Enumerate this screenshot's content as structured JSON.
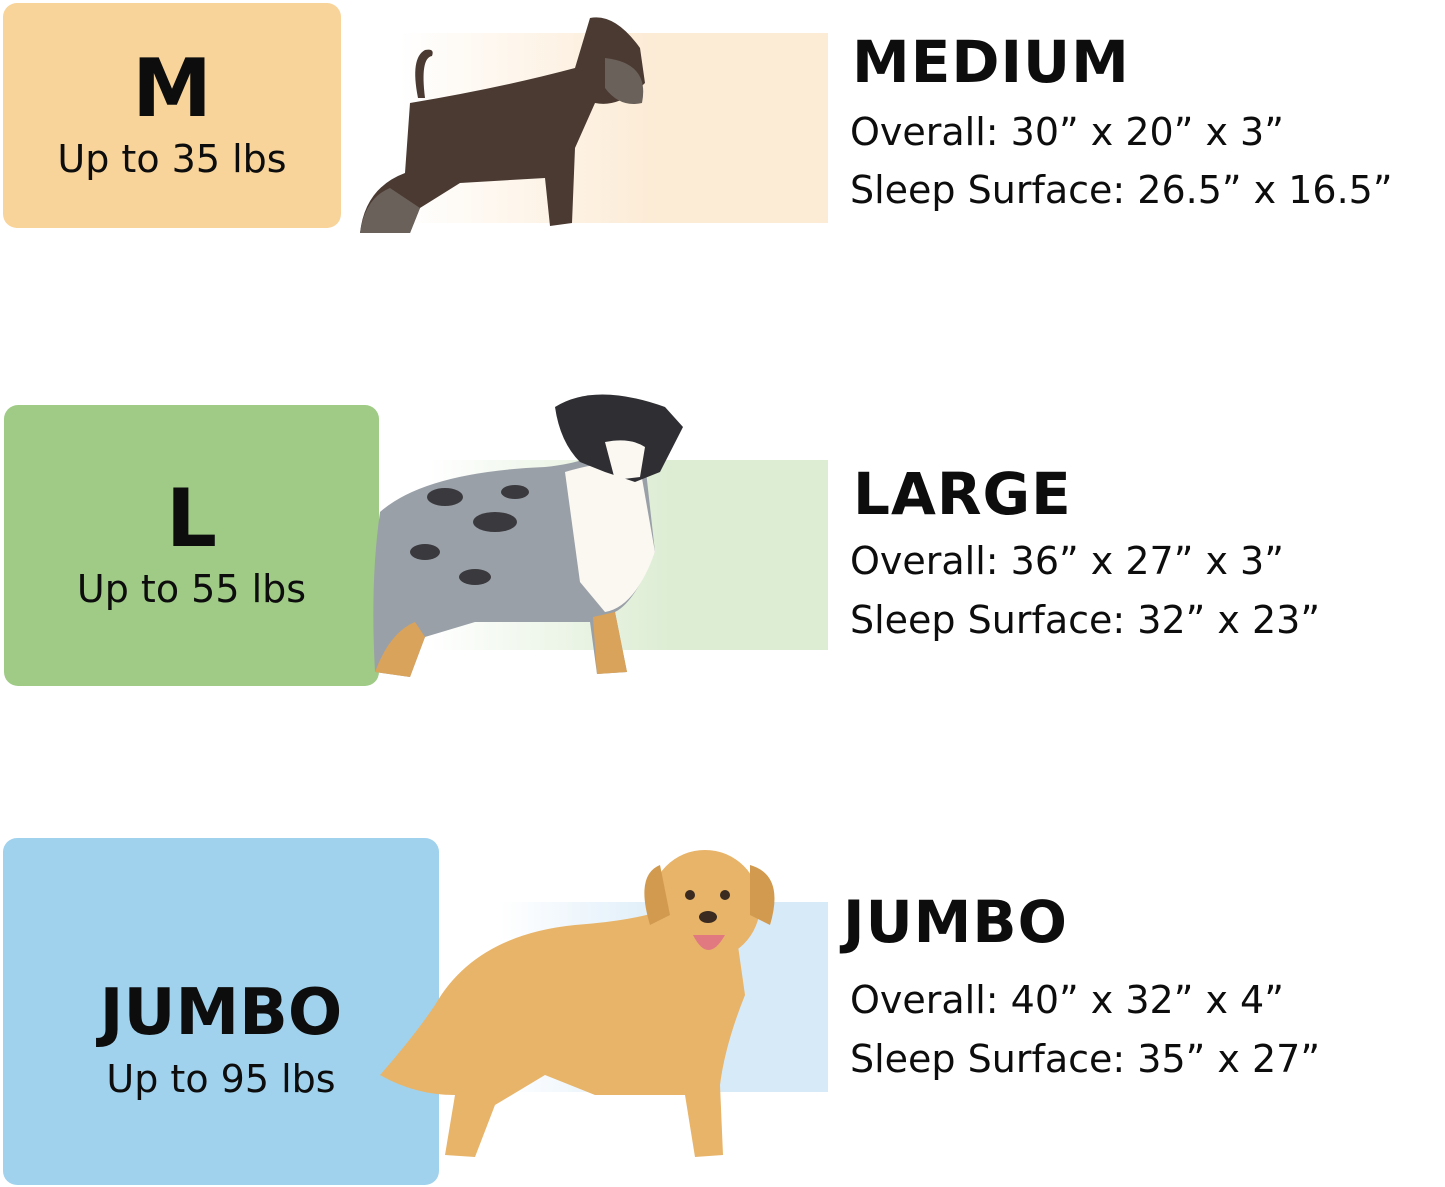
{
  "colors": {
    "medium": "#F8D49A",
    "large": "#9FCB86",
    "jumbo": "#A0D2EE",
    "medium_band": "#FCEBD5",
    "large_band": "#DDEDD4",
    "jumbo_band": "#D7EAF8"
  },
  "sizes": [
    {
      "badge": "M",
      "weight": "Up to 35 lbs",
      "name": "MEDIUM",
      "overall": "Overall: 30” x 20” x 3”",
      "sleep": "Sleep Surface: 26.5” x 16.5”",
      "dog_icon": "schnauzer-dog-icon"
    },
    {
      "badge": "L",
      "weight": "Up to 55 lbs",
      "name": "LARGE",
      "overall": "Overall: 36” x 27” x 3”",
      "sleep": "Sleep Surface: 32” x 23”",
      "dog_icon": "australian-shepherd-dog-icon"
    },
    {
      "badge": "JUMBO",
      "weight": "Up to 95 lbs",
      "name": "JUMBO",
      "overall": "Overall: 40” x 32” x 4”",
      "sleep": "Sleep Surface: 35” x 27”",
      "dog_icon": "golden-retriever-dog-icon"
    }
  ]
}
